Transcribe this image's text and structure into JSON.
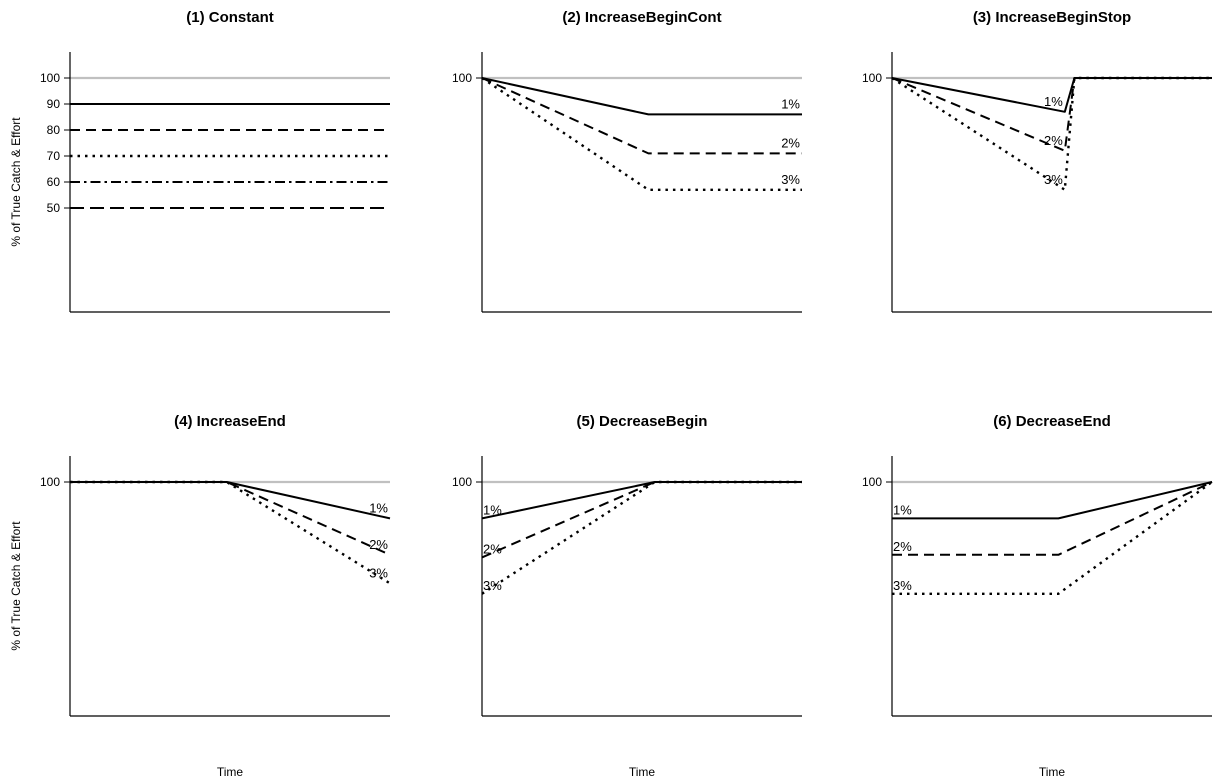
{
  "chart_data": [
    {
      "type": "line",
      "title": "(1) Constant",
      "ylabel": "% of True Catch & Effort",
      "xlabel": "",
      "ylim": [
        10,
        110
      ],
      "xlim": [
        0,
        10
      ],
      "yticks": [
        100,
        90,
        80,
        70,
        60,
        50
      ],
      "reference": {
        "y": 100,
        "color": "#c0c0c0"
      },
      "series": [
        {
          "dash": "solid",
          "points": [
            [
              0,
              90
            ],
            [
              10,
              90
            ]
          ]
        },
        {
          "dash": "dashed",
          "points": [
            [
              0,
              80
            ],
            [
              10,
              80
            ]
          ]
        },
        {
          "dash": "dotted",
          "points": [
            [
              0,
              70
            ],
            [
              10,
              70
            ]
          ]
        },
        {
          "dash": "dashdot",
          "points": [
            [
              0,
              60
            ],
            [
              10,
              60
            ]
          ]
        },
        {
          "dash": "longdash",
          "points": [
            [
              0,
              50
            ],
            [
              10,
              50
            ]
          ]
        }
      ]
    },
    {
      "type": "line",
      "title": "(2) IncreaseBeginCont",
      "ylabel": "",
      "xlabel": "",
      "ylim": [
        10,
        110
      ],
      "xlim": [
        0,
        10
      ],
      "yticks": [
        100
      ],
      "reference": {
        "y": 100,
        "color": "#c0c0c0"
      },
      "series": [
        {
          "name": "1%",
          "dash": "solid",
          "points": [
            [
              0,
              100
            ],
            [
              5.2,
              86
            ],
            [
              10,
              86
            ]
          ]
        },
        {
          "name": "2%",
          "dash": "dashed",
          "points": [
            [
              0,
              100
            ],
            [
              5.2,
              71
            ],
            [
              10,
              71
            ]
          ]
        },
        {
          "name": "3%",
          "dash": "dotted",
          "points": [
            [
              0,
              100
            ],
            [
              5.2,
              57
            ],
            [
              10,
              57
            ]
          ]
        }
      ]
    },
    {
      "type": "line",
      "title": "(3) IncreaseBeginStop",
      "ylabel": "",
      "xlabel": "",
      "ylim": [
        10,
        110
      ],
      "xlim": [
        0,
        10
      ],
      "yticks": [
        100
      ],
      "reference": {
        "y": 100,
        "color": "#c0c0c0"
      },
      "series": [
        {
          "name": "1%",
          "dash": "solid",
          "points": [
            [
              0,
              100
            ],
            [
              5.4,
              87
            ],
            [
              5.7,
              100
            ],
            [
              10,
              100
            ]
          ]
        },
        {
          "name": "2%",
          "dash": "dashed",
          "points": [
            [
              0,
              100
            ],
            [
              5.4,
              72
            ],
            [
              5.7,
              100
            ],
            [
              10,
              100
            ]
          ]
        },
        {
          "name": "3%",
          "dash": "dotted",
          "points": [
            [
              0,
              100
            ],
            [
              5.4,
              57
            ],
            [
              5.7,
              100
            ],
            [
              10,
              100
            ]
          ]
        }
      ]
    },
    {
      "type": "line",
      "title": "(4) IncreaseEnd",
      "ylabel": "% of True Catch & Effort",
      "xlabel": "Time",
      "ylim": [
        10,
        110
      ],
      "xlim": [
        0,
        10
      ],
      "yticks": [
        100
      ],
      "reference": {
        "y": 100,
        "color": "#c0c0c0"
      },
      "series": [
        {
          "name": "1%",
          "dash": "solid",
          "points": [
            [
              0,
              100
            ],
            [
              4.9,
              100
            ],
            [
              10,
              86
            ]
          ]
        },
        {
          "name": "2%",
          "dash": "dashed",
          "points": [
            [
              0,
              100
            ],
            [
              4.9,
              100
            ],
            [
              10,
              72
            ]
          ]
        },
        {
          "name": "3%",
          "dash": "dotted",
          "points": [
            [
              0,
              100
            ],
            [
              4.9,
              100
            ],
            [
              10,
              61
            ]
          ]
        }
      ]
    },
    {
      "type": "line",
      "title": "(5) DecreaseBegin",
      "ylabel": "",
      "xlabel": "Time",
      "ylim": [
        10,
        110
      ],
      "xlim": [
        0,
        10
      ],
      "yticks": [
        100
      ],
      "reference": {
        "y": 100,
        "color": "#c0c0c0"
      },
      "series": [
        {
          "name": "1%",
          "dash": "solid",
          "points": [
            [
              0,
              86
            ],
            [
              5.4,
              100
            ],
            [
              10,
              100
            ]
          ]
        },
        {
          "name": "2%",
          "dash": "dashed",
          "points": [
            [
              0,
              71
            ],
            [
              5.4,
              100
            ],
            [
              10,
              100
            ]
          ]
        },
        {
          "name": "3%",
          "dash": "dotted",
          "points": [
            [
              0,
              57
            ],
            [
              5.4,
              100
            ],
            [
              10,
              100
            ]
          ]
        }
      ]
    },
    {
      "type": "line",
      "title": "(6) DecreaseEnd",
      "ylabel": "",
      "xlabel": "Time",
      "ylim": [
        10,
        110
      ],
      "xlim": [
        0,
        10
      ],
      "yticks": [
        100
      ],
      "reference": {
        "y": 100,
        "color": "#c0c0c0"
      },
      "series": [
        {
          "name": "1%",
          "dash": "solid",
          "points": [
            [
              0,
              86
            ],
            [
              5.2,
              86
            ],
            [
              10,
              100
            ]
          ]
        },
        {
          "name": "2%",
          "dash": "dashed",
          "points": [
            [
              0,
              72
            ],
            [
              5.2,
              72
            ],
            [
              10,
              100
            ]
          ]
        },
        {
          "name": "3%",
          "dash": "dotted",
          "points": [
            [
              0,
              57
            ],
            [
              5.2,
              57
            ],
            [
              10,
              100
            ]
          ]
        }
      ]
    }
  ]
}
